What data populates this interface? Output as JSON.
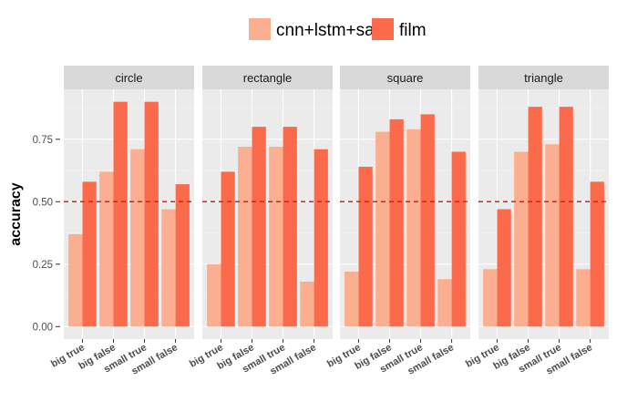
{
  "chart_data": {
    "type": "bar",
    "title": "",
    "xlabel": "",
    "ylabel": "accuracy",
    "ylim": [
      -0.05,
      0.95
    ],
    "yticks": [
      0.0,
      0.25,
      0.5,
      0.75
    ],
    "ytick_labels": [
      "0.00",
      "0.25",
      "0.50",
      "0.75"
    ],
    "reference_line": {
      "y": 0.5,
      "style": "dashed",
      "color": "#e41a1c"
    },
    "legend": {
      "placement": "top"
    },
    "categories": [
      "big true",
      "big false",
      "small true",
      "small false"
    ],
    "panels": [
      {
        "name": "circle",
        "series": [
          {
            "name": "cnn+lstm+sa",
            "values": [
              0.37,
              0.62,
              0.71,
              0.47
            ]
          },
          {
            "name": "film",
            "values": [
              0.58,
              0.9,
              0.9,
              0.57
            ]
          }
        ]
      },
      {
        "name": "rectangle",
        "series": [
          {
            "name": "cnn+lstm+sa",
            "values": [
              0.25,
              0.72,
              0.72,
              0.18
            ]
          },
          {
            "name": "film",
            "values": [
              0.62,
              0.8,
              0.8,
              0.71
            ]
          }
        ]
      },
      {
        "name": "square",
        "series": [
          {
            "name": "cnn+lstm+sa",
            "values": [
              0.22,
              0.78,
              0.79,
              0.19
            ]
          },
          {
            "name": "film",
            "values": [
              0.64,
              0.83,
              0.85,
              0.7
            ]
          }
        ]
      },
      {
        "name": "triangle",
        "series": [
          {
            "name": "cnn+lstm+sa",
            "values": [
              0.23,
              0.7,
              0.73,
              0.23
            ]
          },
          {
            "name": "film",
            "values": [
              0.47,
              0.88,
              0.88,
              0.58
            ]
          }
        ]
      }
    ],
    "colors": {
      "cnn+lstm+sa": "#fcae91",
      "film": "#fb6a4a"
    },
    "grid": true
  }
}
